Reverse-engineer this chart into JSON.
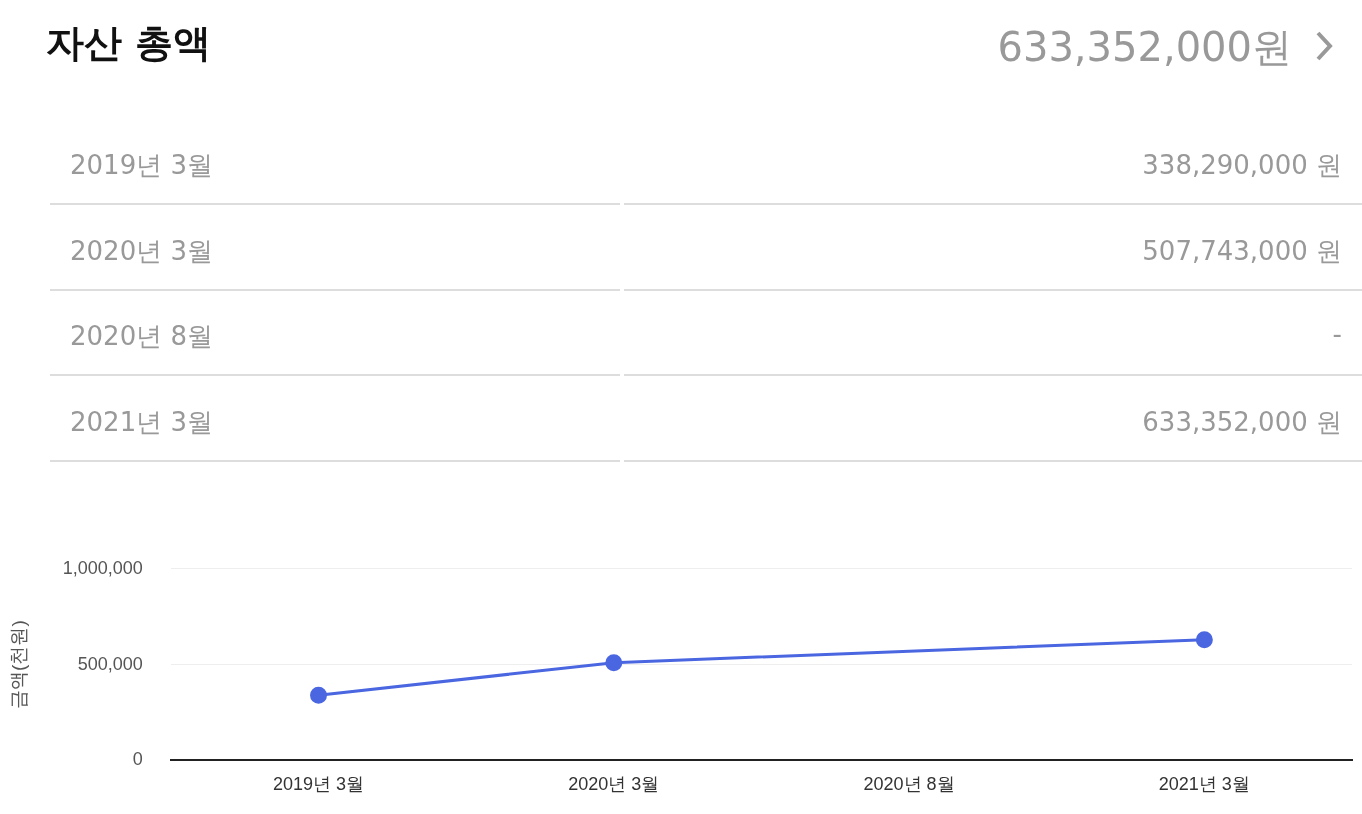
{
  "chart_data": [
    {
      "type": "other",
      "title": "자산 총액",
      "subtitle": "633,352,000원",
      "annotations": [
        "2019년 3월",
        "338,290,000 원",
        "2020년 3월",
        "507,743,000 원",
        "2020년 8월",
        "-",
        "2021년 3월",
        "633,352,000 원"
      ]
    },
    {
      "type": "line",
      "ylabel": "금액(천원)",
      "categories": [
        "2019년 3월",
        "2020년 3월",
        "2020년 8월",
        "2021년 3월"
      ],
      "values": [
        340000,
        510000,
        null,
        630000
      ],
      "color": "#4a66e0",
      "ylim": [
        0,
        1000000
      ],
      "yticks": [
        {
          "value": 0,
          "label": "0"
        },
        {
          "value": 500000,
          "label": "500,000"
        },
        {
          "value": 1000000,
          "label": "1,000,000"
        }
      ],
      "grid": "y",
      "marker": "circle",
      "line_style": "solid"
    }
  ]
}
